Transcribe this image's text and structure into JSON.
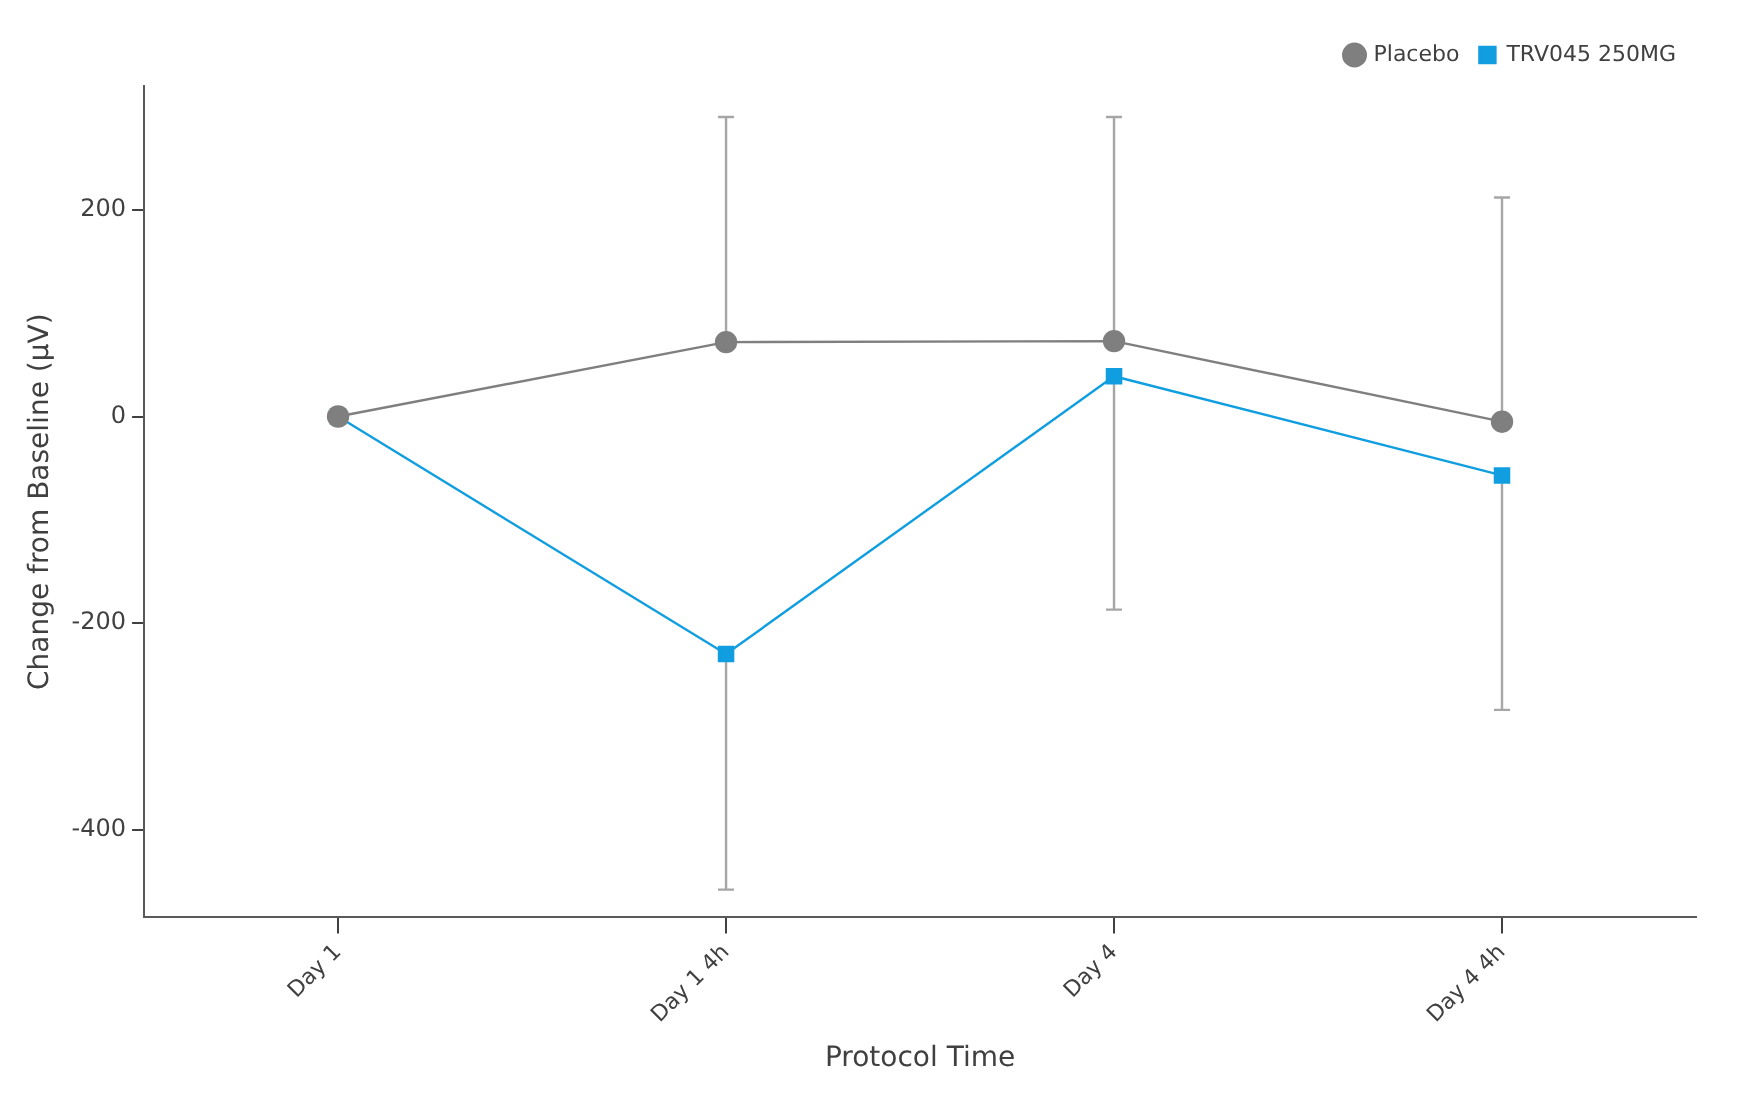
{
  "chart_data": {
    "type": "line",
    "xlabel": "Protocol Time",
    "ylabel": "Change from Baseline (μV)",
    "categories": [
      "Day 1",
      "Day 1 4h",
      "Day 4",
      "Day 4 4h"
    ],
    "ylim": [
      -485,
      320
    ],
    "yticks": [
      -400,
      -200,
      0,
      200
    ],
    "series": [
      {
        "name": "Placebo",
        "color": "#7f7f7f",
        "marker": "circle",
        "values": [
          0,
          72,
          73,
          -5
        ],
        "errors": [
          null,
          [
            72,
            290
          ],
          [
            73,
            290
          ],
          [
            -5,
            212
          ]
        ]
      },
      {
        "name": "TRV045 250MG",
        "color": "#109ee0",
        "marker": "square",
        "values": [
          0,
          -230,
          39,
          -57
        ],
        "errors": [
          null,
          [
            -458,
            -230
          ],
          [
            -187,
            39
          ],
          [
            -284,
            -57
          ]
        ]
      }
    ],
    "grid": false,
    "legend": "top right",
    "line_style": "solid"
  }
}
